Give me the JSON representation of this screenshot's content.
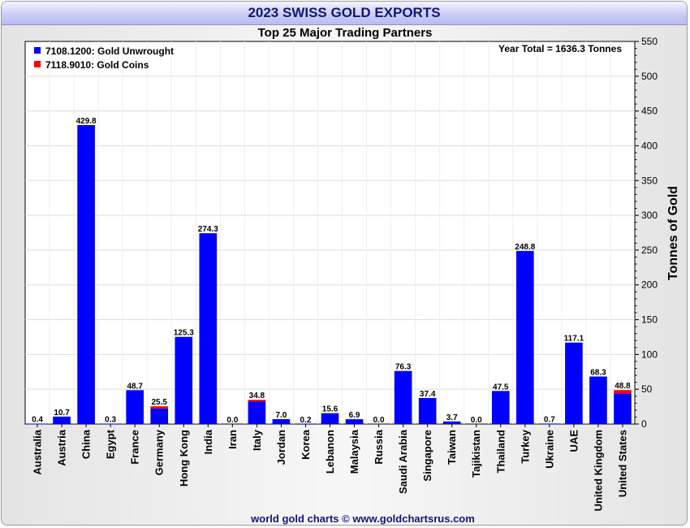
{
  "chart_data": {
    "type": "bar",
    "stacked": true,
    "title": "2023 SWISS GOLD EXPORTS",
    "subtitle": "Top 25 Major Trading Partners",
    "annotation": "Year Total = 1636.3 Tonnes",
    "ylabel": "Tonnes of Gold",
    "ylim": [
      0,
      550
    ],
    "yticks": [
      0,
      50,
      100,
      150,
      200,
      250,
      300,
      350,
      400,
      450,
      500,
      550
    ],
    "legend_position": "top-left",
    "categories": [
      "Australia",
      "Austria",
      "China",
      "Egypt",
      "France",
      "Germany",
      "Hong Kong",
      "India",
      "Iran",
      "Italy",
      "Jordan",
      "Korea",
      "Lebanon",
      "Malaysia",
      "Russia",
      "Saudi Arabia",
      "Singapore",
      "Taiwan",
      "Tajikistan",
      "Thailand",
      "Turkey",
      "Ukraine",
      "UAE",
      "United Kingdom",
      "United States"
    ],
    "totals": [
      "0.4",
      "10.7",
      "429.8",
      "0.3",
      "48.7",
      "25.5",
      "125.3",
      "274.3",
      "0.0",
      "34.8",
      "7.0",
      "0.2",
      "15.6",
      "6.9",
      "0.0",
      "76.3",
      "37.4",
      "3.7",
      "0.0",
      "47.5",
      "248.8",
      "0.7",
      "117.1",
      "68.3",
      "48.8"
    ],
    "series": [
      {
        "name": "7108.1200: Gold Unwrought",
        "color": "#0000ff",
        "values": [
          0.4,
          10.7,
          429.8,
          0.3,
          48.7,
          22.5,
          125.3,
          274.3,
          0.0,
          32.5,
          7.0,
          0.2,
          15.6,
          6.9,
          0.0,
          76.3,
          37.4,
          3.7,
          0.0,
          47.5,
          248.8,
          0.7,
          117.1,
          68.3,
          44.0
        ]
      },
      {
        "name": "7118.9010: Gold Coins",
        "color": "#ff0000",
        "values": [
          0,
          0,
          0,
          0,
          0,
          3.0,
          0,
          0,
          0,
          2.3,
          0,
          0,
          0,
          0,
          0,
          0,
          0,
          0,
          0,
          0,
          0,
          0,
          0,
          0,
          4.8
        ]
      }
    ]
  },
  "footer": "world gold charts © www.goldchartsrus.com"
}
